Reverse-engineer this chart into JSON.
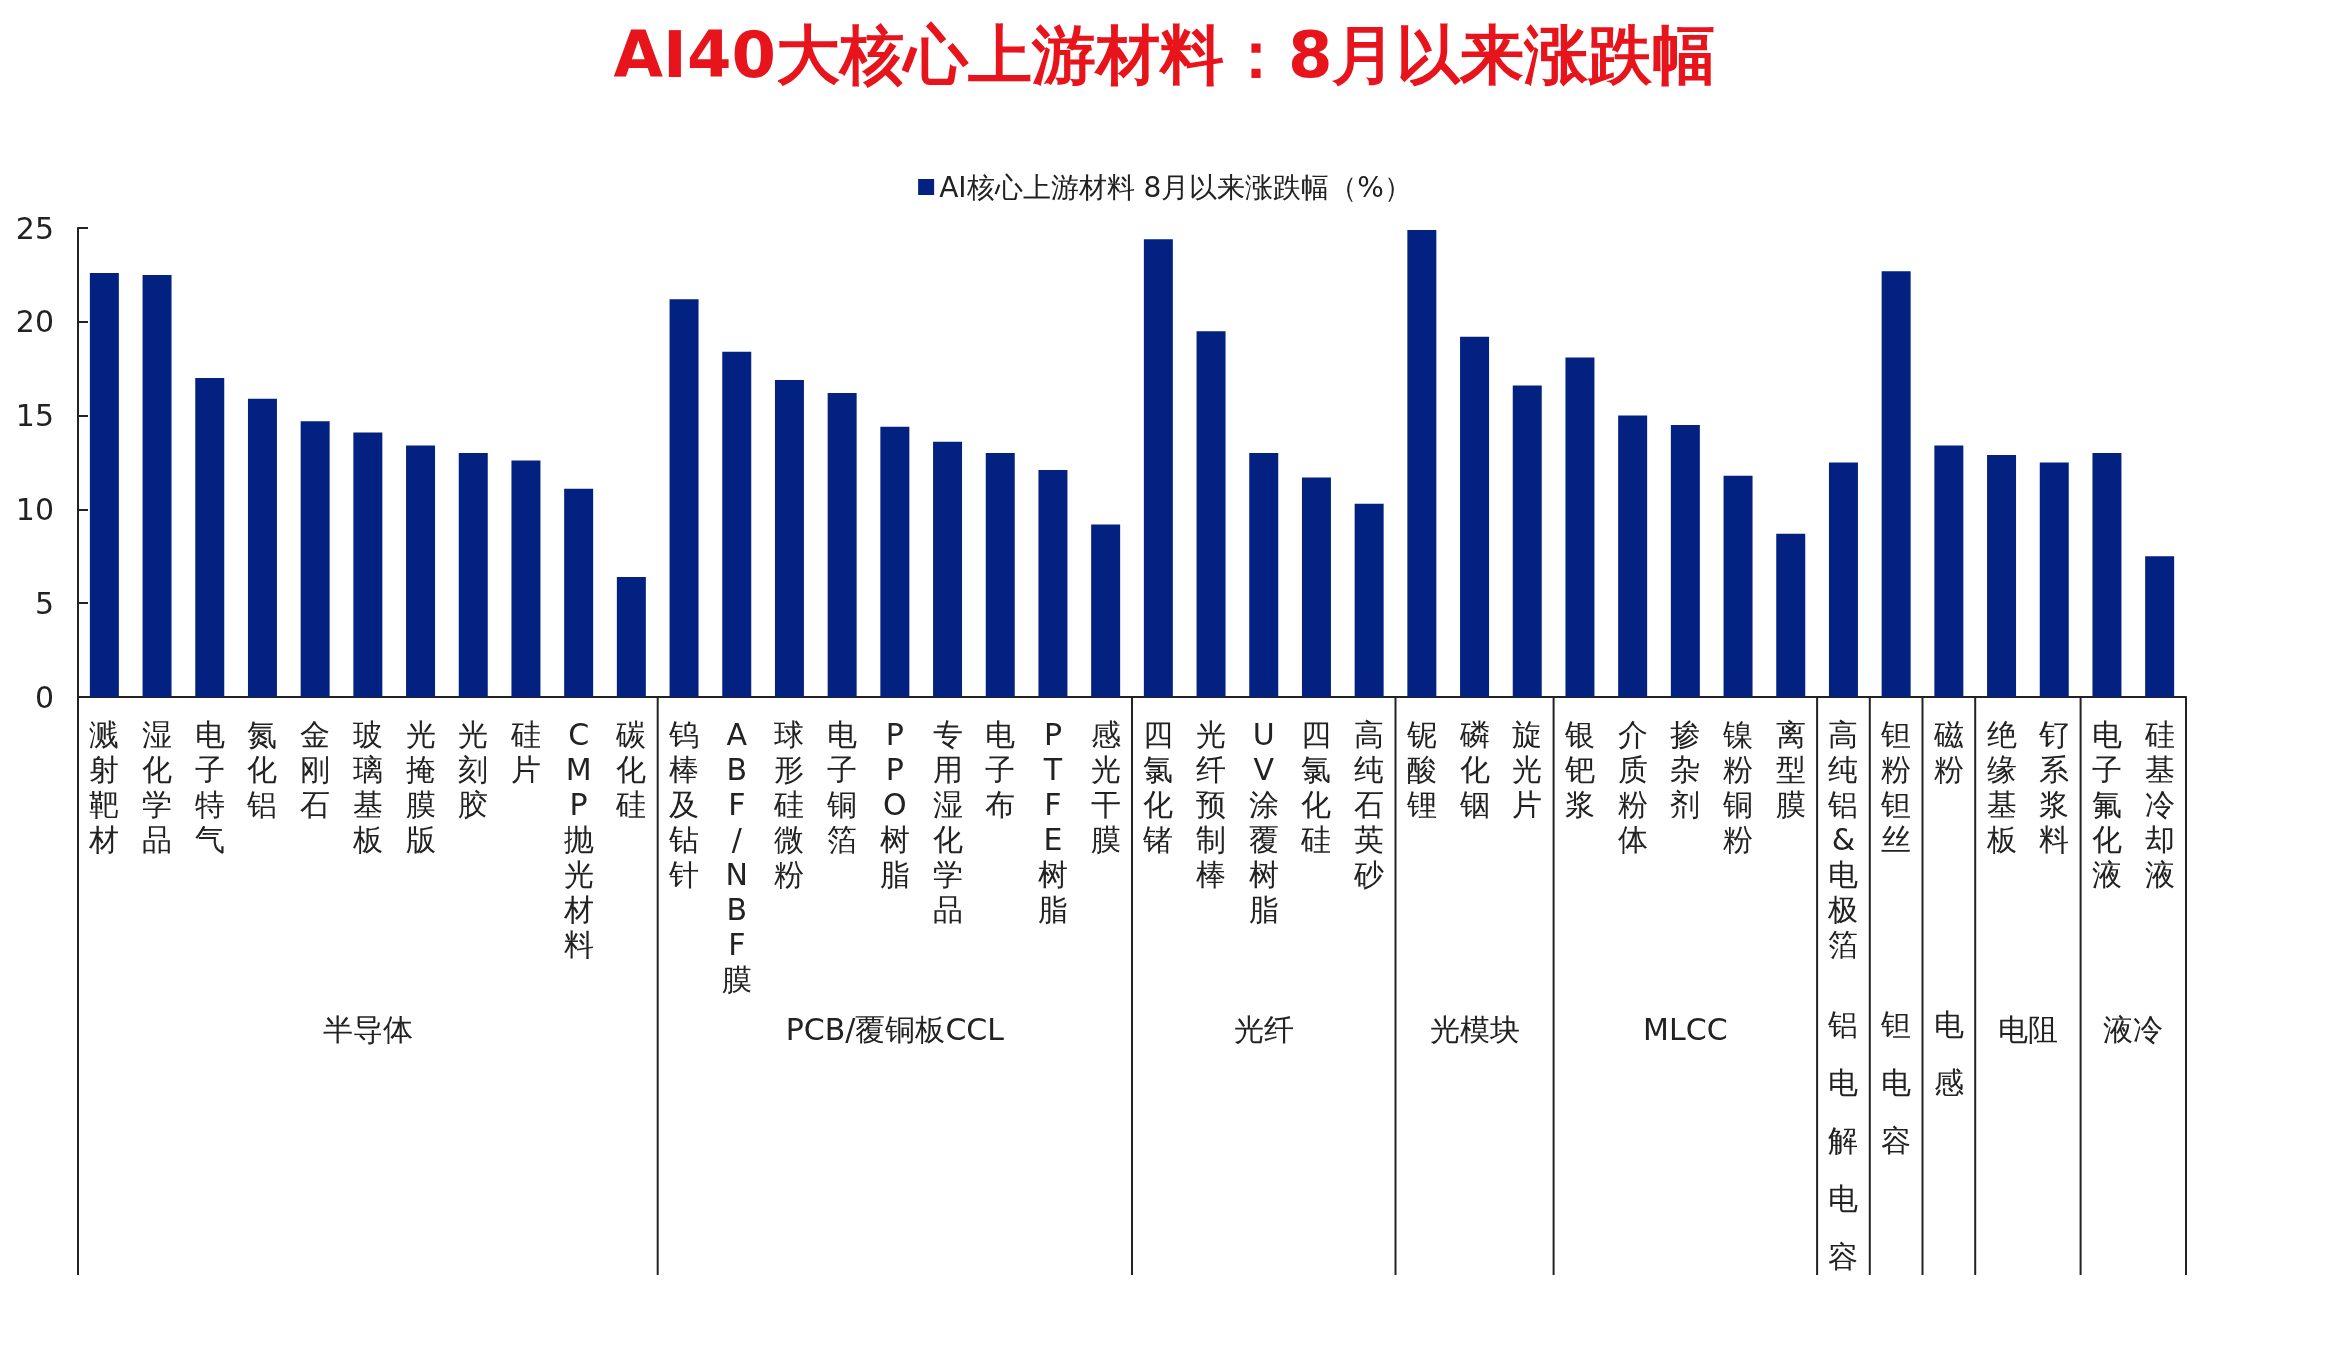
{
  "chart_data": {
    "type": "bar",
    "title": "AI40大核心上游材料：8月以来涨跌幅",
    "categories": [
      "溅射靶材",
      "湿化学品",
      "电子特气",
      "氮化铝",
      "金刚石",
      "玻璃基板",
      "光掩膜版",
      "光刻胶",
      "硅片",
      "CMP抛光材料",
      "碳化硅",
      "钨棒及钻针",
      "ABF/NBF膜",
      "球形硅微粉",
      "电子铜箔",
      "PPO树脂",
      "专用湿化学品",
      "电子布",
      "PTFE树脂",
      "感光干膜",
      "四氯化锗",
      "光纤预制棒",
      "UV涂覆树脂",
      "四氯化硅",
      "高纯石英砂",
      "铌酸锂",
      "磷化铟",
      "旋光片",
      "银钯浆",
      "介质粉体",
      "掺杂剂",
      "镍粉铜粉",
      "离型膜",
      "高纯铝&电极箔",
      "钽粉钽丝",
      "磁粉",
      "绝缘基板",
      "钌系浆料",
      "电子氟化液",
      "硅基冷却液"
    ],
    "series": [
      {
        "name": "AI核心上游材料 8月以来涨跌幅（%）",
        "color": "#022180",
        "values": [
          22.6,
          22.5,
          17.0,
          15.9,
          14.7,
          14.1,
          13.4,
          13.0,
          12.6,
          11.1,
          6.4,
          21.2,
          18.4,
          16.9,
          16.2,
          14.4,
          13.6,
          13.0,
          12.1,
          9.2,
          24.4,
          19.5,
          13.0,
          11.7,
          10.3,
          24.9,
          19.2,
          16.6,
          18.1,
          15.0,
          14.5,
          11.8,
          8.7,
          12.5,
          22.7,
          13.4,
          12.9,
          12.5,
          13.0,
          7.5
        ]
      }
    ],
    "ylim": [
      0,
      25
    ],
    "yticks": [
      0,
      5,
      10,
      15,
      20,
      25
    ],
    "grid": false,
    "legend": "top",
    "annotations": [
      "半导体",
      "PCB/覆铜板CCL",
      "光纤",
      "光模块",
      "MLCC",
      "铝电解电容",
      "钽电容",
      "电感",
      "电阻",
      "液冷"
    ]
  }
}
